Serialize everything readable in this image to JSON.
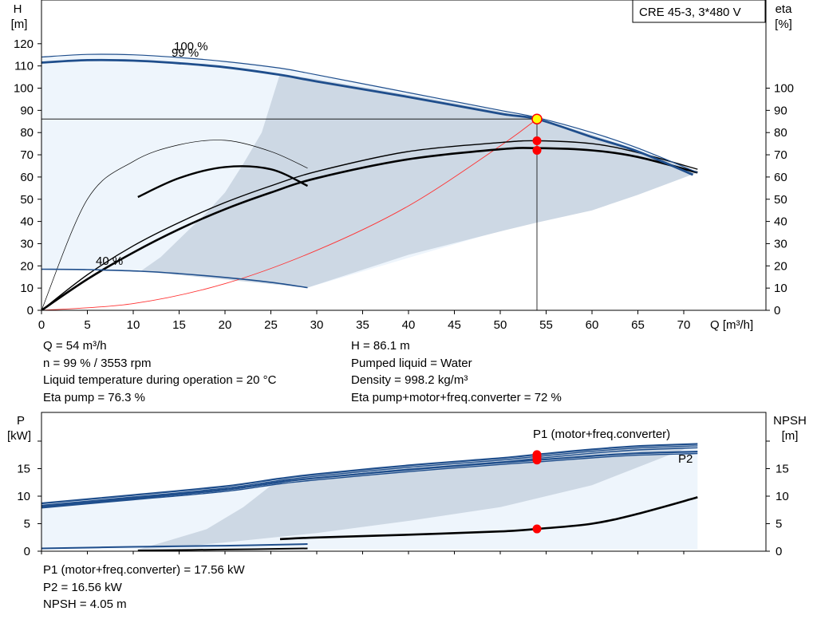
{
  "title_box": "CRE 45-3, 3*480 V",
  "head_chart": {
    "y_label_top": "H",
    "y_label_unit": "[m]",
    "y2_label_top": "eta",
    "y2_label_unit": "[%]",
    "x_label": "Q [m³/h]",
    "xlim": [
      0,
      78
    ],
    "ylim": [
      0,
      128
    ],
    "x_ticks": [
      0,
      5,
      10,
      15,
      20,
      25,
      30,
      35,
      40,
      45,
      50,
      55,
      60,
      65,
      70
    ],
    "y_ticks": [
      0,
      10,
      20,
      30,
      40,
      50,
      60,
      70,
      80,
      90,
      100,
      110,
      120
    ],
    "y2_ticks": [
      0,
      10,
      20,
      30,
      40,
      50,
      60,
      70,
      80,
      90,
      100
    ],
    "speed_labels": [
      "100 %",
      "99 %",
      "40 %"
    ]
  },
  "power_chart": {
    "y_label_top": "P",
    "y_label_unit": "[kW]",
    "y2_label_top": "NPSH",
    "y2_label_unit": "[m]",
    "ylim": [
      0,
      20
    ],
    "y_ticks": [
      0,
      5,
      10,
      15
    ],
    "y2_ticks": [
      0,
      5,
      10,
      15
    ],
    "p1_label": "P1 (motor+freq.converter)",
    "p2_label": "P2"
  },
  "chart_data": [
    {
      "type": "line",
      "name": "head-efficiency",
      "xlabel": "Q [m³/h]",
      "ylabel": "H [m]",
      "y2label": "eta [%]",
      "xlim": [
        0,
        78
      ],
      "ylim": [
        0,
        128
      ],
      "series": [
        {
          "name": "100 %",
          "x": [
            0,
            5,
            10,
            15,
            20,
            26,
            30,
            40,
            50,
            54,
            60,
            65,
            71.5
          ],
          "y": [
            114,
            115.2,
            115,
            113.8,
            112,
            109,
            106,
            98,
            90,
            86.8,
            80,
            73,
            62
          ]
        },
        {
          "name": "99 %",
          "x": [
            0,
            5,
            10,
            15,
            20,
            26,
            30,
            40,
            50,
            54,
            60,
            65,
            71
          ],
          "y": [
            111.5,
            112.6,
            112.4,
            111.2,
            109.4,
            106,
            103,
            96,
            88.5,
            86.1,
            78,
            71.5,
            61
          ]
        },
        {
          "name": "40 %",
          "x": [
            0,
            5,
            10.8,
            15,
            20,
            25,
            29
          ],
          "y": [
            18.5,
            18.3,
            17.6,
            16.5,
            14.8,
            12.6,
            10.2
          ]
        },
        {
          "x": [
            0,
            5,
            10,
            15,
            20,
            25,
            30,
            40,
            50,
            54,
            60,
            65,
            71.5
          ],
          "y": [
            0,
            14,
            26,
            36.5,
            45.5,
            53,
            59.5,
            68,
            72.5,
            73,
            72,
            69,
            62
          ]
        },
        {
          "x": [
            0,
            5,
            10,
            15,
            20,
            25,
            30,
            40,
            50,
            54,
            60,
            65,
            71.5
          ],
          "y": [
            0,
            16,
            29,
            39.5,
            48.5,
            56,
            62.5,
            71.5,
            75.5,
            76.3,
            75,
            71,
            63.5
          ]
        },
        {
          "x": [
            0,
            5,
            10,
            15,
            20,
            25,
            29
          ],
          "y": [
            0,
            50,
            67,
            74.5,
            76.5,
            71.5,
            64
          ]
        },
        {
          "x": [
            10.5,
            15,
            20,
            25,
            29
          ],
          "y": [
            51,
            59.5,
            64.5,
            63.5,
            56
          ]
        },
        {
          "x": [
            0,
            10,
            20,
            30,
            40,
            50,
            54
          ],
          "y": [
            0,
            3,
            12,
            27,
            47,
            74,
            86.1
          ]
        }
      ],
      "annotations": [
        {
          "label": "duty point",
          "x": 54,
          "y": 86.1
        },
        {
          "label": "eta pump",
          "x": 54,
          "y": 76.3
        },
        {
          "label": "eta pump+motor+freq.converter",
          "x": 54,
          "y": 72
        }
      ]
    },
    {
      "type": "line",
      "name": "power-npsh",
      "ylabel": "P [kW]",
      "y2label": "NPSH [m]",
      "xlim": [
        0,
        78
      ],
      "ylim": [
        0,
        20
      ],
      "series": [
        {
          "name": "P1 (motor+freq.converter)",
          "x": [
            0,
            10,
            20,
            26,
            30,
            40,
            50,
            54,
            60,
            65,
            71.5
          ],
          "y": [
            8.7,
            10.2,
            11.8,
            13.2,
            14,
            15.6,
            16.9,
            17.56,
            18.5,
            19.1,
            19.5
          ]
        },
        {
          "name": "P2",
          "x": [
            0,
            10,
            20,
            26,
            30,
            40,
            50,
            54,
            60,
            65,
            71.5
          ],
          "y": [
            8.2,
            9.7,
            11.2,
            12.6,
            13.3,
            14.8,
            16.1,
            16.56,
            17.3,
            17.8,
            18.1
          ]
        },
        {
          "name": "NPSH",
          "x": [
            26,
            30,
            40,
            50,
            54,
            60,
            65,
            71.5
          ],
          "y": [
            2.2,
            2.5,
            3,
            3.6,
            4.05,
            5,
            6.8,
            9.8
          ]
        },
        {
          "x": [
            0,
            10,
            20,
            29
          ],
          "y": [
            0.5,
            0.8,
            1,
            1.3
          ]
        },
        {
          "x": [
            10.5,
            20,
            29
          ],
          "y": [
            0.15,
            0.3,
            0.5
          ]
        }
      ],
      "annotations": [
        {
          "label": "P1",
          "x": 54,
          "y": 17.56
        },
        {
          "label": "P2",
          "x": 54,
          "y": 16.56
        },
        {
          "label": "NPSH",
          "x": 54,
          "y": 4.05
        }
      ]
    }
  ],
  "info_top_left": [
    "Q = 54 m³/h",
    "n = 99 % / 3553 rpm",
    "Liquid temperature during operation = 20 °C",
    "Eta pump = 76.3 %"
  ],
  "info_top_right": [
    "H = 86.1 m",
    "Pumped liquid = Water",
    "Density = 998.2 kg/m³",
    "Eta pump+motor+freq.converter = 72 %"
  ],
  "info_bottom": [
    "P1 (motor+freq.converter) = 17.56 kW",
    "P2 = 16.56 kW",
    "NPSH = 4.05 m"
  ],
  "colors": {
    "dark_blue": "#1f4e8c",
    "light_region": "#eef5fc",
    "gray_region": "#cdd8e4",
    "red_point": "#ff0000",
    "yellow_point": "#ffff00",
    "red_curve": "#ff3333"
  }
}
